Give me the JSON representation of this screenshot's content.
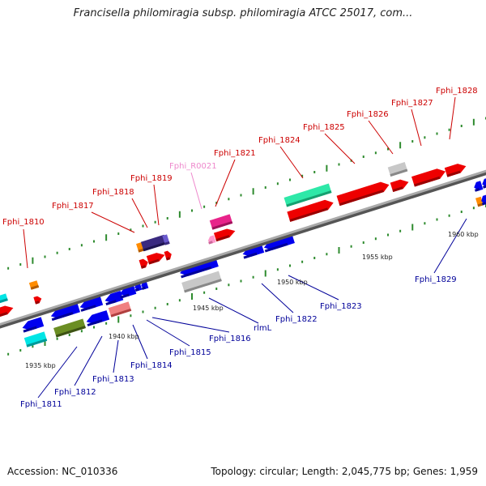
{
  "title": "Francisella philomiragia subsp. philomiragia ATCC 25017, com...",
  "footer": {
    "accession": "Accession: NC_010336",
    "summary": "Topology: circular; Length: 2,045,775 bp; Genes: 1,959"
  },
  "colors": {
    "plus_gene_label": "#cc0000",
    "minus_gene_label": "#000099",
    "rna_label": "#ee88cc",
    "backbone": "#888888",
    "tick": "#2e8b2e"
  },
  "kbp_labels": [
    "1935 kbp",
    "1940 kbp",
    "1945 kbp",
    "1950 kbp",
    "1955 kbp",
    "1960 kbp"
  ],
  "plus_genes": [
    "Fphi_1810",
    "Fphi_1817",
    "Fphi_1818",
    "Fphi_1819",
    "Fphi_R0021",
    "Fphi_1821",
    "Fphi_1824",
    "Fphi_1825",
    "Fphi_1826",
    "Fphi_1827",
    "Fphi_1828"
  ],
  "minus_genes": [
    "Fphi_1811",
    "Fphi_1812",
    "Fphi_1813",
    "Fphi_1814",
    "Fphi_1815",
    "Fphi_1816",
    "rlmL",
    "Fphi_1822",
    "Fphi_1823",
    "Fphi_1829"
  ]
}
